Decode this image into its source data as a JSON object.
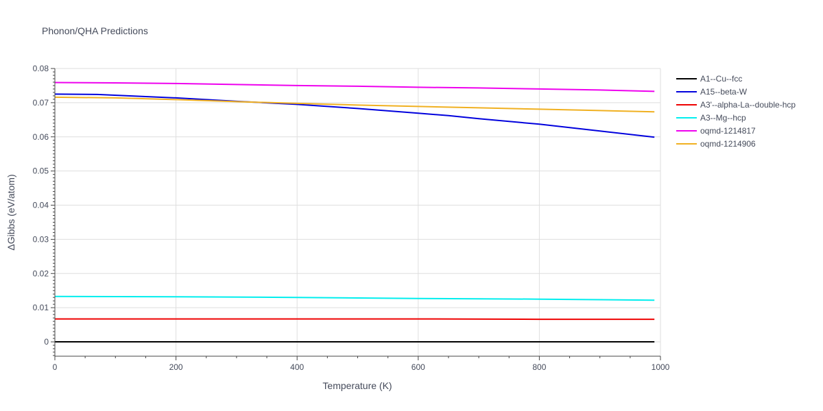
{
  "chart_data": {
    "type": "line",
    "title": "Phonon/QHA Predictions",
    "xlabel": "Temperature (K)",
    "ylabel": "ΔGibbs (eV/atom)",
    "xlim": [
      0,
      1000
    ],
    "ylim": [
      -0.0042,
      0.08
    ],
    "x_ticks": [
      0,
      200,
      400,
      600,
      800,
      1000
    ],
    "y_ticks": [
      0,
      0.01,
      0.02,
      0.03,
      0.04,
      0.05,
      0.06,
      0.07,
      0.08
    ],
    "x_tick_labels": [
      "0",
      "200",
      "400",
      "600",
      "800",
      "1000"
    ],
    "y_tick_labels": [
      "0",
      "0.01",
      "0.02",
      "0.03",
      "0.04",
      "0.05",
      "0.06",
      "0.07",
      "0.08"
    ],
    "grid": true,
    "legend_position": "top-right",
    "series": [
      {
        "name": "A1--Cu--fcc",
        "color": "#000000",
        "x": [
          0,
          100,
          200,
          300,
          400,
          500,
          600,
          700,
          800,
          900,
          990
        ],
        "y": [
          0,
          0,
          0,
          0,
          0,
          0,
          0,
          0,
          0,
          0,
          0
        ]
      },
      {
        "name": "A15--beta-W",
        "color": "#0000dd",
        "x": [
          0,
          70,
          200,
          300,
          400,
          500,
          600,
          650,
          700,
          800,
          900,
          990
        ],
        "y": [
          0.0725,
          0.0724,
          0.0714,
          0.0704,
          0.0695,
          0.0683,
          0.0669,
          0.0662,
          0.0653,
          0.0637,
          0.0617,
          0.0599
        ]
      },
      {
        "name": "A3'--alpha-La--double-hcp",
        "color": "#ee0000",
        "x": [
          0,
          200,
          400,
          600,
          800,
          990
        ],
        "y": [
          0.0067,
          0.0067,
          0.0067,
          0.0067,
          0.0066,
          0.0066
        ]
      },
      {
        "name": "A3--Mg--hcp",
        "color": "#00eeee",
        "x": [
          0,
          200,
          400,
          600,
          800,
          990
        ],
        "y": [
          0.0133,
          0.0132,
          0.013,
          0.0127,
          0.0125,
          0.0122
        ]
      },
      {
        "name": "oqmd-1214817",
        "color": "#ee00ee",
        "x": [
          0,
          100,
          200,
          300,
          400,
          500,
          600,
          700,
          800,
          900,
          990
        ],
        "y": [
          0.0759,
          0.0758,
          0.0756,
          0.0753,
          0.075,
          0.0748,
          0.0745,
          0.0743,
          0.074,
          0.0737,
          0.0733
        ]
      },
      {
        "name": "oqmd-1214906",
        "color": "#f0b020",
        "x": [
          0,
          100,
          200,
          300,
          400,
          500,
          600,
          700,
          800,
          900,
          990
        ],
        "y": [
          0.0716,
          0.0714,
          0.0709,
          0.0703,
          0.0698,
          0.0693,
          0.0689,
          0.0685,
          0.0681,
          0.0677,
          0.0673
        ]
      }
    ]
  }
}
